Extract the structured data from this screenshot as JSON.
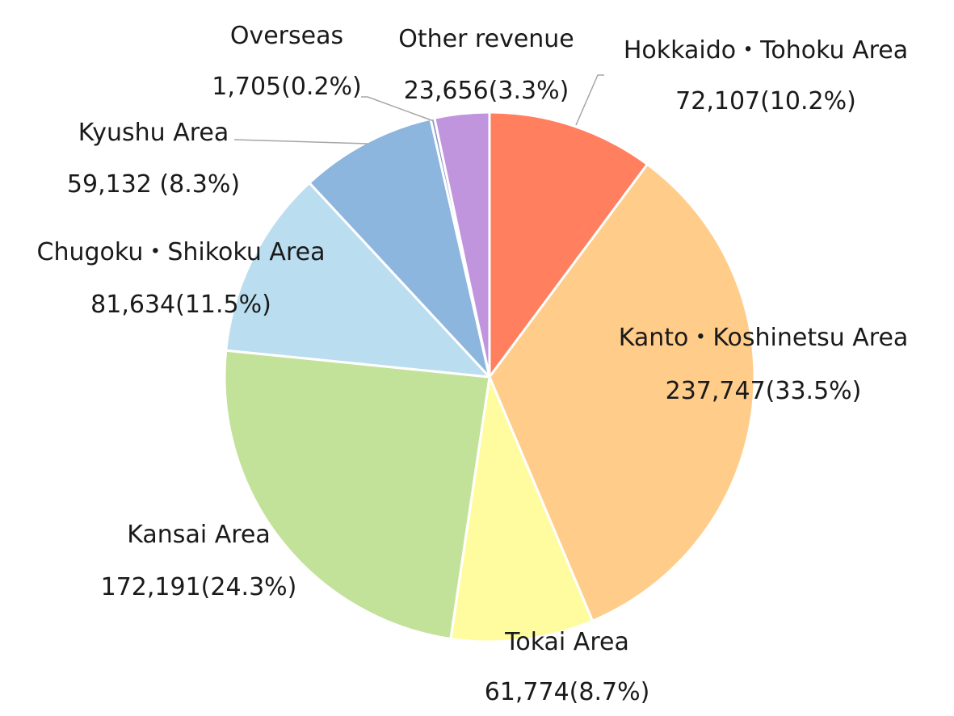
{
  "chart_data": {
    "type": "pie",
    "title": "",
    "start_angle_deg": 0,
    "direction": "clockwise",
    "slices": [
      {
        "name": "Hokkaido・Tohoku Area",
        "value": 72107,
        "percent": 10.2,
        "label": "Hokkaido・Tohoku Area",
        "value_label": "72,107(10.2%)",
        "color": "#FF7F5F"
      },
      {
        "name": "Kanto・Koshinetsu Area",
        "value": 237747,
        "percent": 33.5,
        "label": "Kanto・Koshinetsu Area",
        "value_label": "237,747(33.5%)",
        "color": "#FFCC8A"
      },
      {
        "name": "Tokai Area",
        "value": 61774,
        "percent": 8.7,
        "label": "Tokai Area",
        "value_label": "61,774(8.7%)",
        "color": "#FFFCA0"
      },
      {
        "name": "Kansai Area",
        "value": 172191,
        "percent": 24.3,
        "label": "Kansai Area",
        "value_label": "172,191(24.3%)",
        "color": "#C3E299"
      },
      {
        "name": "Chugoku・Shikoku Area",
        "value": 81634,
        "percent": 11.5,
        "label": "Chugoku・Shikoku Area",
        "value_label": "81,634(11.5%)",
        "color": "#BADEF0"
      },
      {
        "name": "Kyushu Area",
        "value": 59132,
        "percent": 8.3,
        "label": "Kyushu Area",
        "value_label": "59,132 (8.3%)",
        "color": "#8DB6DE"
      },
      {
        "name": "Overseas",
        "value": 1705,
        "percent": 0.2,
        "label": "Overseas",
        "value_label": "1,705(0.2%)",
        "color": "#8C96C8"
      },
      {
        "name": "Other revenue",
        "value": 23656,
        "percent": 3.3,
        "label": "Other revenue",
        "value_label": "23,656(3.3%)",
        "color": "#C195DE"
      }
    ]
  }
}
